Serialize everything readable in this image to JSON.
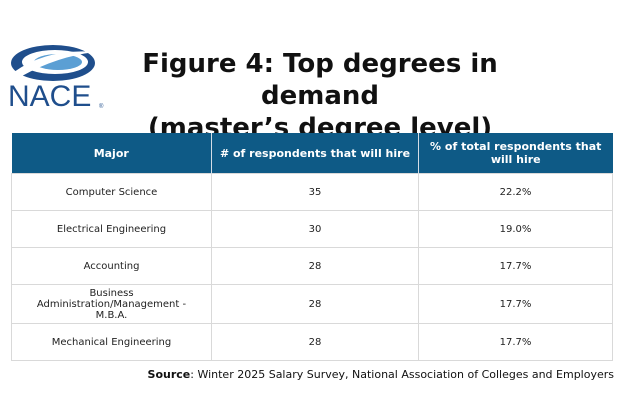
{
  "logo": {
    "text": "NACE",
    "reg": "®",
    "color": "#1f4e8c"
  },
  "title_line1": "Figure 4: Top degrees in demand",
  "title_line2": "(master’s degree level)",
  "table": {
    "header_color": "#0e5a86",
    "headers": [
      "Major",
      "# of respondents that will hire",
      "% of total respondents that will hire"
    ],
    "rows": [
      [
        "Computer Science",
        "35",
        "22.2%"
      ],
      [
        "Electrical Engineering",
        "30",
        "19.0%"
      ],
      [
        "Accounting",
        "28",
        "17.7%"
      ],
      [
        "Business Administration/Management - M.B.A.",
        "28",
        "17.7%"
      ],
      [
        "Mechanical Engineering",
        "28",
        "17.7%"
      ]
    ]
  },
  "source": {
    "label": "Source",
    "text": ": Winter 2025 Salary Survey, National Association of Colleges and Employers"
  },
  "chart_data": {
    "type": "table",
    "title": "Figure 4: Top degrees in demand (master’s degree level)",
    "columns": [
      "Major",
      "# of respondents that will hire",
      "% of total respondents that will hire"
    ],
    "categories": [
      "Computer Science",
      "Electrical Engineering",
      "Accounting",
      "Business Administration/Management - M.B.A.",
      "Mechanical Engineering"
    ],
    "series": [
      {
        "name": "# of respondents that will hire",
        "values": [
          35,
          30,
          28,
          28,
          28
        ]
      },
      {
        "name": "% of total respondents that will hire",
        "values": [
          22.2,
          19.0,
          17.7,
          17.7,
          17.7
        ]
      }
    ]
  }
}
